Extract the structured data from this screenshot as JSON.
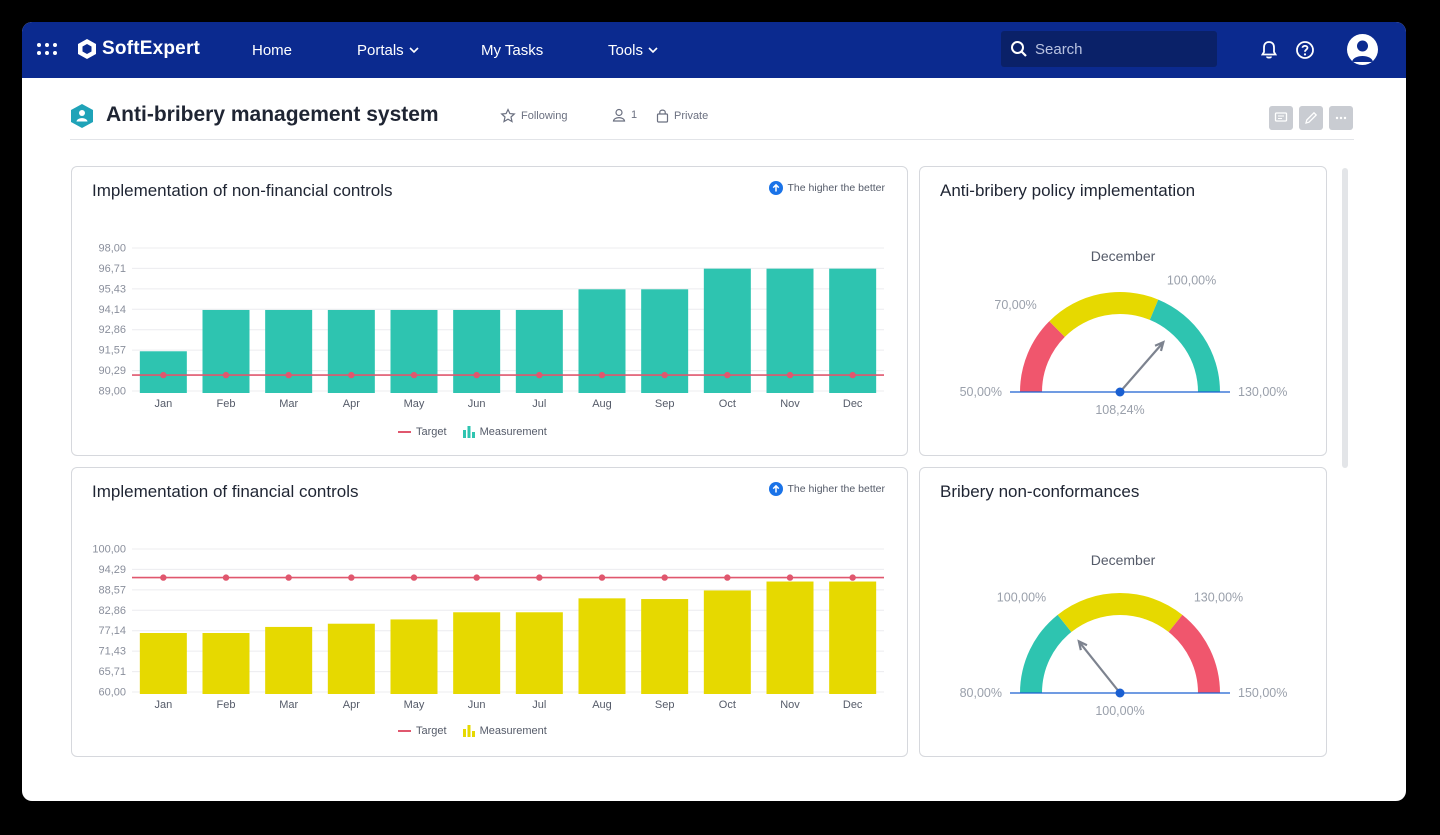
{
  "topbar": {
    "brand": "SoftExpert",
    "nav": [
      "Home",
      "Portals",
      "My Tasks",
      "Tools"
    ],
    "search_placeholder": "Search"
  },
  "header": {
    "title": "Anti-bribery management system",
    "following": "Following",
    "members": "1",
    "privacy": "Private"
  },
  "colors": {
    "topbar": "#0b2a8f",
    "teal": "#2ec4b0",
    "yellow": "#e6d900",
    "red": "#f0566d",
    "target": "#e0576e",
    "accent_blue": "#1a73e8"
  },
  "cards": {
    "nonfin": {
      "title": "Implementation of non-financial controls",
      "badge": "The higher the better",
      "legend_target": "Target",
      "legend_measurement": "Measurement"
    },
    "fin": {
      "title": "Implementation of financial controls",
      "badge": "The higher the better",
      "legend_target": "Target",
      "legend_measurement": "Measurement"
    },
    "policy": {
      "title": "Anti-bribery policy implementation",
      "month": "December"
    },
    "nonconf": {
      "title": "Bribery non-conformances",
      "month": "December"
    }
  },
  "chart_data": [
    {
      "type": "bar",
      "title": "Implementation of non-financial controls",
      "categories": [
        "Jan",
        "Feb",
        "Mar",
        "Apr",
        "May",
        "Jun",
        "Jul",
        "Aug",
        "Sep",
        "Oct",
        "Nov",
        "Dec"
      ],
      "yticks": [
        "98,00",
        "96,71",
        "95,43",
        "94,14",
        "92,86",
        "91,57",
        "90,29",
        "89,00"
      ],
      "ylim": [
        89.0,
        98.0
      ],
      "series": [
        {
          "name": "Measurement",
          "type": "bar",
          "color": "#2ec4b0",
          "values": [
            91.5,
            94.1,
            94.1,
            94.1,
            94.1,
            94.1,
            94.1,
            95.4,
            95.4,
            96.7,
            96.7,
            96.7
          ]
        },
        {
          "name": "Target",
          "type": "line",
          "color": "#e0576e",
          "values": [
            90.0,
            90.0,
            90.0,
            90.0,
            90.0,
            90.0,
            90.0,
            90.0,
            90.0,
            90.0,
            90.0,
            90.0
          ]
        }
      ]
    },
    {
      "type": "bar",
      "title": "Implementation of financial controls",
      "categories": [
        "Jan",
        "Feb",
        "Mar",
        "Apr",
        "May",
        "Jun",
        "Jul",
        "Aug",
        "Sep",
        "Oct",
        "Nov",
        "Dec"
      ],
      "yticks": [
        "100,00",
        "94,29",
        "88,57",
        "82,86",
        "77,14",
        "71,43",
        "65,71",
        "60,00"
      ],
      "ylim": [
        60.0,
        100.0
      ],
      "series": [
        {
          "name": "Measurement",
          "type": "bar",
          "color": "#e6d900",
          "values": [
            76.5,
            76.5,
            78.2,
            79.1,
            80.3,
            82.3,
            82.3,
            86.2,
            86.0,
            88.4,
            90.9,
            90.9
          ]
        },
        {
          "name": "Target",
          "type": "line",
          "color": "#e0576e",
          "values": [
            92.0,
            92.0,
            92.0,
            92.0,
            92.0,
            92.0,
            92.0,
            92.0,
            92.0,
            92.0,
            92.0,
            92.0
          ]
        }
      ]
    },
    {
      "type": "gauge",
      "title": "Anti-bribery policy implementation",
      "month": "December",
      "min": 50,
      "max": 130,
      "bands": [
        {
          "from": 50,
          "to": 70,
          "color": "#f0566d"
        },
        {
          "from": 70,
          "to": 100,
          "color": "#e6d900"
        },
        {
          "from": 100,
          "to": 130,
          "color": "#2ec4b0"
        }
      ],
      "labels": {
        "min": "50,00%",
        "t1": "70,00%",
        "t2": "100,00%",
        "max": "130,00%"
      },
      "value": 108.24,
      "value_label": "108,24%"
    },
    {
      "type": "gauge",
      "title": "Bribery non-conformances",
      "month": "December",
      "min": 80,
      "max": 150,
      "bands": [
        {
          "from": 80,
          "to": 100,
          "color": "#2ec4b0"
        },
        {
          "from": 100,
          "to": 130,
          "color": "#e6d900"
        },
        {
          "from": 130,
          "to": 150,
          "color": "#f0566d"
        }
      ],
      "labels": {
        "min": "80,00%",
        "t1": "100,00%",
        "t2": "130,00%",
        "max": "150,00%"
      },
      "value": 100.0,
      "value_label": "100,00%"
    }
  ]
}
